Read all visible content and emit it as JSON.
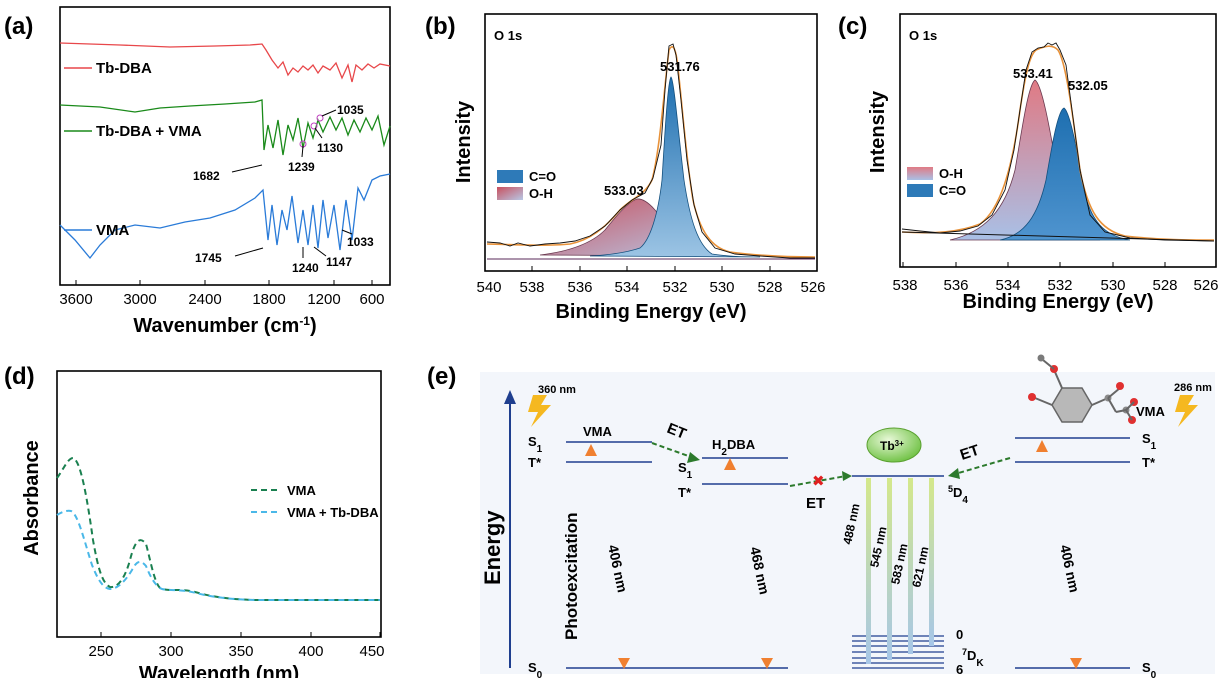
{
  "panels": {
    "a": "(a)",
    "b": "(b)",
    "c": "(c)",
    "d": "(d)",
    "e": "(e)"
  },
  "chart_data": [
    {
      "id": "a",
      "type": "line",
      "xlabel": "Wavenumber (cm",
      "xlabel_sup": "-1",
      "xlabel_end": ")",
      "x_ticks": [
        "3600",
        "3000",
        "2400",
        "1800",
        "1200",
        "600"
      ],
      "series": [
        {
          "name": "Tb-DBA",
          "color": "#e8474a"
        },
        {
          "name": "Tb-DBA + VMA",
          "color": "#1a8a1a"
        },
        {
          "name": "VMA",
          "color": "#2a7bd8"
        }
      ],
      "annotations": [
        "1035",
        "1130",
        "1682",
        "1239",
        "1745",
        "1240",
        "1147",
        "1033"
      ]
    },
    {
      "id": "b",
      "type": "area",
      "inset_title": "O 1s",
      "xlabel": "Binding Energy (eV)",
      "ylabel": "Intensity",
      "xlim": [
        540,
        526
      ],
      "x_ticks": [
        "540",
        "538",
        "536",
        "534",
        "532",
        "530",
        "528",
        "526"
      ],
      "legend": [
        "C=O",
        "O-H"
      ],
      "peaks": [
        {
          "label": "531.76",
          "center": 531.76
        },
        {
          "label": "533.03",
          "center": 533.03
        }
      ]
    },
    {
      "id": "c",
      "type": "area",
      "inset_title": "O 1s",
      "xlabel": "Binding Energy (eV)",
      "ylabel": "Intensity",
      "xlim": [
        538,
        526
      ],
      "x_ticks": [
        "538",
        "536",
        "534",
        "532",
        "530",
        "528",
        "526"
      ],
      "legend": [
        "O-H",
        "C=O"
      ],
      "peaks": [
        {
          "label": "533.41",
          "center": 533.41
        },
        {
          "label": "532.05",
          "center": 532.05
        }
      ]
    },
    {
      "id": "d",
      "type": "line",
      "xlabel": "Wavelength (nm)",
      "ylabel": "Absorbance",
      "xlim": [
        220,
        450
      ],
      "x_ticks": [
        "250",
        "300",
        "350",
        "400",
        "450"
      ],
      "series": [
        {
          "name": "VMA",
          "color": "#1a8050"
        },
        {
          "name": "VMA + Tb-DBA",
          "color": "#4ab8e8"
        }
      ]
    }
  ],
  "diagram_e": {
    "energy_label": "Energy",
    "photoexcitation": "Photoexcitation",
    "exc_left": "360 nm",
    "exc_right": "286 nm",
    "vma": "VMA",
    "h2dba_main": "H",
    "h2dba_sub": "2",
    "h2dba_end": "DBA",
    "tb_ion": "Tb",
    "tb_sup": "3+",
    "et": "ET",
    "s_main": "S",
    "s1_sub": "1",
    "s0_sub": "0",
    "tstar": "T*",
    "d4_sup": "5",
    "d4_main": "D",
    "d4_sub": "4",
    "dk_sup": "7",
    "dk_main": "D",
    "dk_sub": "K",
    "zero": "0",
    "six": "6",
    "em_406a": "406 nm",
    "em_468": "468 nm",
    "em_406b": "406 nm",
    "tb_lines": [
      "488 nm",
      "545 nm",
      "583 nm",
      "621 nm"
    ]
  }
}
